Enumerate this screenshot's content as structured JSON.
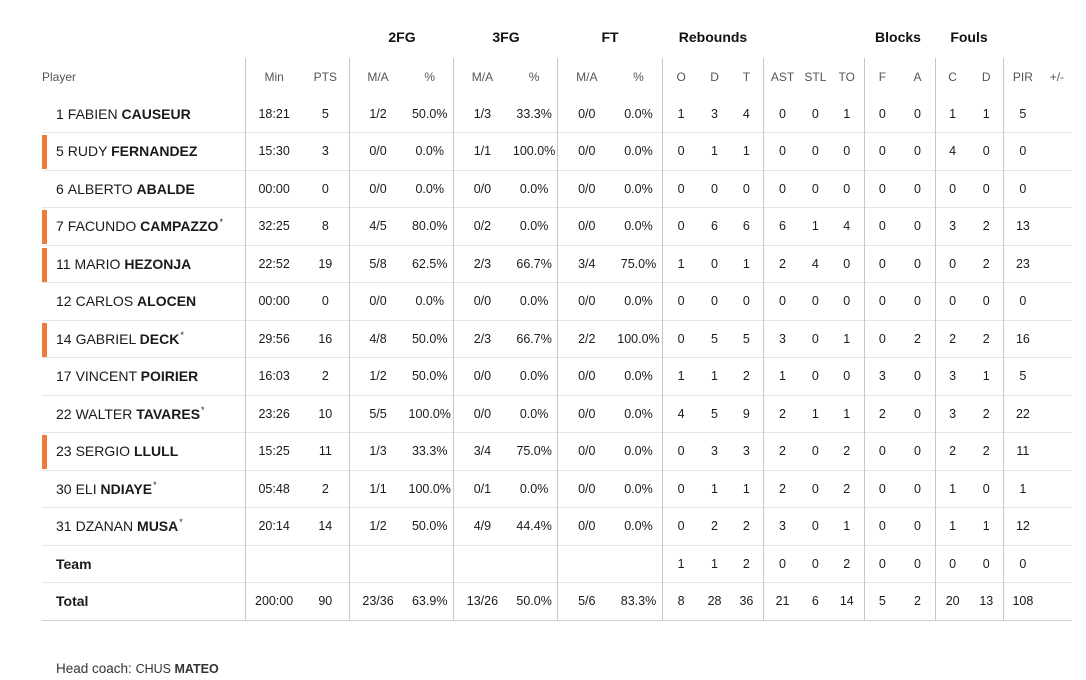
{
  "groups": {
    "fg2": "2FG",
    "fg3": "3FG",
    "ft": "FT",
    "rebounds": "Rebounds",
    "blocks": "Blocks",
    "fouls": "Fouls"
  },
  "columns": {
    "player": "Player",
    "min": "Min",
    "pts": "PTS",
    "fg2_ma": "M/A",
    "fg2_pct": "%",
    "fg3_ma": "M/A",
    "fg3_pct": "%",
    "ft_ma": "M/A",
    "ft_pct": "%",
    "reb_o": "O",
    "reb_d": "D",
    "reb_t": "T",
    "ast": "AST",
    "stl": "STL",
    "to": "TO",
    "blk_f": "F",
    "blk_a": "A",
    "foul_c": "C",
    "foul_d": "D",
    "pir": "PIR",
    "pm": "+/-"
  },
  "players": [
    {
      "num": "1",
      "first": "FABIEN",
      "last": "CAUSEUR",
      "star": "",
      "starter": false,
      "min": "18:21",
      "pts": "5",
      "fg2_ma": "1/2",
      "fg2_pct": "50.0%",
      "fg3_ma": "1/3",
      "fg3_pct": "33.3%",
      "ft_ma": "0/0",
      "ft_pct": "0.0%",
      "reb_o": "1",
      "reb_d": "3",
      "reb_t": "4",
      "ast": "0",
      "stl": "0",
      "to": "1",
      "blk_f": "0",
      "blk_a": "0",
      "foul_c": "1",
      "foul_d": "1",
      "pir": "5",
      "pm": ""
    },
    {
      "num": "5",
      "first": "RUDY",
      "last": "FERNANDEZ",
      "star": "",
      "starter": true,
      "min": "15:30",
      "pts": "3",
      "fg2_ma": "0/0",
      "fg2_pct": "0.0%",
      "fg3_ma": "1/1",
      "fg3_pct": "100.0%",
      "ft_ma": "0/0",
      "ft_pct": "0.0%",
      "reb_o": "0",
      "reb_d": "1",
      "reb_t": "1",
      "ast": "0",
      "stl": "0",
      "to": "0",
      "blk_f": "0",
      "blk_a": "0",
      "foul_c": "4",
      "foul_d": "0",
      "pir": "0",
      "pm": ""
    },
    {
      "num": "6",
      "first": "ALBERTO",
      "last": "ABALDE",
      "star": "",
      "starter": false,
      "min": "00:00",
      "pts": "0",
      "fg2_ma": "0/0",
      "fg2_pct": "0.0%",
      "fg3_ma": "0/0",
      "fg3_pct": "0.0%",
      "ft_ma": "0/0",
      "ft_pct": "0.0%",
      "reb_o": "0",
      "reb_d": "0",
      "reb_t": "0",
      "ast": "0",
      "stl": "0",
      "to": "0",
      "blk_f": "0",
      "blk_a": "0",
      "foul_c": "0",
      "foul_d": "0",
      "pir": "0",
      "pm": ""
    },
    {
      "num": "7",
      "first": "FACUNDO",
      "last": "CAMPAZZO",
      "star": "*",
      "starter": true,
      "min": "32:25",
      "pts": "8",
      "fg2_ma": "4/5",
      "fg2_pct": "80.0%",
      "fg3_ma": "0/2",
      "fg3_pct": "0.0%",
      "ft_ma": "0/0",
      "ft_pct": "0.0%",
      "reb_o": "0",
      "reb_d": "6",
      "reb_t": "6",
      "ast": "6",
      "stl": "1",
      "to": "4",
      "blk_f": "0",
      "blk_a": "0",
      "foul_c": "3",
      "foul_d": "2",
      "pir": "13",
      "pm": ""
    },
    {
      "num": "11",
      "first": "MARIO",
      "last": "HEZONJA",
      "star": "",
      "starter": true,
      "min": "22:52",
      "pts": "19",
      "fg2_ma": "5/8",
      "fg2_pct": "62.5%",
      "fg3_ma": "2/3",
      "fg3_pct": "66.7%",
      "ft_ma": "3/4",
      "ft_pct": "75.0%",
      "reb_o": "1",
      "reb_d": "0",
      "reb_t": "1",
      "ast": "2",
      "stl": "4",
      "to": "0",
      "blk_f": "0",
      "blk_a": "0",
      "foul_c": "0",
      "foul_d": "2",
      "pir": "23",
      "pm": ""
    },
    {
      "num": "12",
      "first": "CARLOS",
      "last": "ALOCEN",
      "star": "",
      "starter": false,
      "min": "00:00",
      "pts": "0",
      "fg2_ma": "0/0",
      "fg2_pct": "0.0%",
      "fg3_ma": "0/0",
      "fg3_pct": "0.0%",
      "ft_ma": "0/0",
      "ft_pct": "0.0%",
      "reb_o": "0",
      "reb_d": "0",
      "reb_t": "0",
      "ast": "0",
      "stl": "0",
      "to": "0",
      "blk_f": "0",
      "blk_a": "0",
      "foul_c": "0",
      "foul_d": "0",
      "pir": "0",
      "pm": ""
    },
    {
      "num": "14",
      "first": "GABRIEL",
      "last": "DECK",
      "star": "*",
      "starter": true,
      "min": "29:56",
      "pts": "16",
      "fg2_ma": "4/8",
      "fg2_pct": "50.0%",
      "fg3_ma": "2/3",
      "fg3_pct": "66.7%",
      "ft_ma": "2/2",
      "ft_pct": "100.0%",
      "reb_o": "0",
      "reb_d": "5",
      "reb_t": "5",
      "ast": "3",
      "stl": "0",
      "to": "1",
      "blk_f": "0",
      "blk_a": "2",
      "foul_c": "2",
      "foul_d": "2",
      "pir": "16",
      "pm": ""
    },
    {
      "num": "17",
      "first": "VINCENT",
      "last": "POIRIER",
      "star": "",
      "starter": false,
      "min": "16:03",
      "pts": "2",
      "fg2_ma": "1/2",
      "fg2_pct": "50.0%",
      "fg3_ma": "0/0",
      "fg3_pct": "0.0%",
      "ft_ma": "0/0",
      "ft_pct": "0.0%",
      "reb_o": "1",
      "reb_d": "1",
      "reb_t": "2",
      "ast": "1",
      "stl": "0",
      "to": "0",
      "blk_f": "3",
      "blk_a": "0",
      "foul_c": "3",
      "foul_d": "1",
      "pir": "5",
      "pm": ""
    },
    {
      "num": "22",
      "first": "WALTER",
      "last": "TAVARES",
      "star": "*",
      "starter": false,
      "min": "23:26",
      "pts": "10",
      "fg2_ma": "5/5",
      "fg2_pct": "100.0%",
      "fg3_ma": "0/0",
      "fg3_pct": "0.0%",
      "ft_ma": "0/0",
      "ft_pct": "0.0%",
      "reb_o": "4",
      "reb_d": "5",
      "reb_t": "9",
      "ast": "2",
      "stl": "1",
      "to": "1",
      "blk_f": "2",
      "blk_a": "0",
      "foul_c": "3",
      "foul_d": "2",
      "pir": "22",
      "pm": ""
    },
    {
      "num": "23",
      "first": "SERGIO",
      "last": "LLULL",
      "star": "",
      "starter": true,
      "min": "15:25",
      "pts": "11",
      "fg2_ma": "1/3",
      "fg2_pct": "33.3%",
      "fg3_ma": "3/4",
      "fg3_pct": "75.0%",
      "ft_ma": "0/0",
      "ft_pct": "0.0%",
      "reb_o": "0",
      "reb_d": "3",
      "reb_t": "3",
      "ast": "2",
      "stl": "0",
      "to": "2",
      "blk_f": "0",
      "blk_a": "0",
      "foul_c": "2",
      "foul_d": "2",
      "pir": "11",
      "pm": ""
    },
    {
      "num": "30",
      "first": "ELI",
      "last": "NDIAYE",
      "star": "*",
      "starter": false,
      "min": "05:48",
      "pts": "2",
      "fg2_ma": "1/1",
      "fg2_pct": "100.0%",
      "fg3_ma": "0/1",
      "fg3_pct": "0.0%",
      "ft_ma": "0/0",
      "ft_pct": "0.0%",
      "reb_o": "0",
      "reb_d": "1",
      "reb_t": "1",
      "ast": "2",
      "stl": "0",
      "to": "2",
      "blk_f": "0",
      "blk_a": "0",
      "foul_c": "1",
      "foul_d": "0",
      "pir": "1",
      "pm": ""
    },
    {
      "num": "31",
      "first": "DZANAN",
      "last": "MUSA",
      "star": "*",
      "starter": false,
      "min": "20:14",
      "pts": "14",
      "fg2_ma": "1/2",
      "fg2_pct": "50.0%",
      "fg3_ma": "4/9",
      "fg3_pct": "44.4%",
      "ft_ma": "0/0",
      "ft_pct": "0.0%",
      "reb_o": "0",
      "reb_d": "2",
      "reb_t": "2",
      "ast": "3",
      "stl": "0",
      "to": "1",
      "blk_f": "0",
      "blk_a": "0",
      "foul_c": "1",
      "foul_d": "1",
      "pir": "12",
      "pm": ""
    }
  ],
  "team": {
    "label": "Team",
    "reb_o": "1",
    "reb_d": "1",
    "reb_t": "2",
    "ast": "0",
    "stl": "0",
    "to": "2",
    "blk_f": "0",
    "blk_a": "0",
    "foul_c": "0",
    "foul_d": "0",
    "pir": "0"
  },
  "total": {
    "label": "Total",
    "min": "200:00",
    "pts": "90",
    "fg2_ma": "23/36",
    "fg2_pct": "63.9%",
    "fg3_ma": "13/26",
    "fg3_pct": "50.0%",
    "ft_ma": "5/6",
    "ft_pct": "83.3%",
    "reb_o": "8",
    "reb_d": "28",
    "reb_t": "36",
    "ast": "21",
    "stl": "6",
    "to": "14",
    "blk_f": "5",
    "blk_a": "2",
    "foul_c": "20",
    "foul_d": "13",
    "pir": "108"
  },
  "coach": {
    "label": "Head coach:",
    "first": "CHUS",
    "last": "MATEO"
  },
  "colors": {
    "starter_marker": "#f07a3c"
  }
}
